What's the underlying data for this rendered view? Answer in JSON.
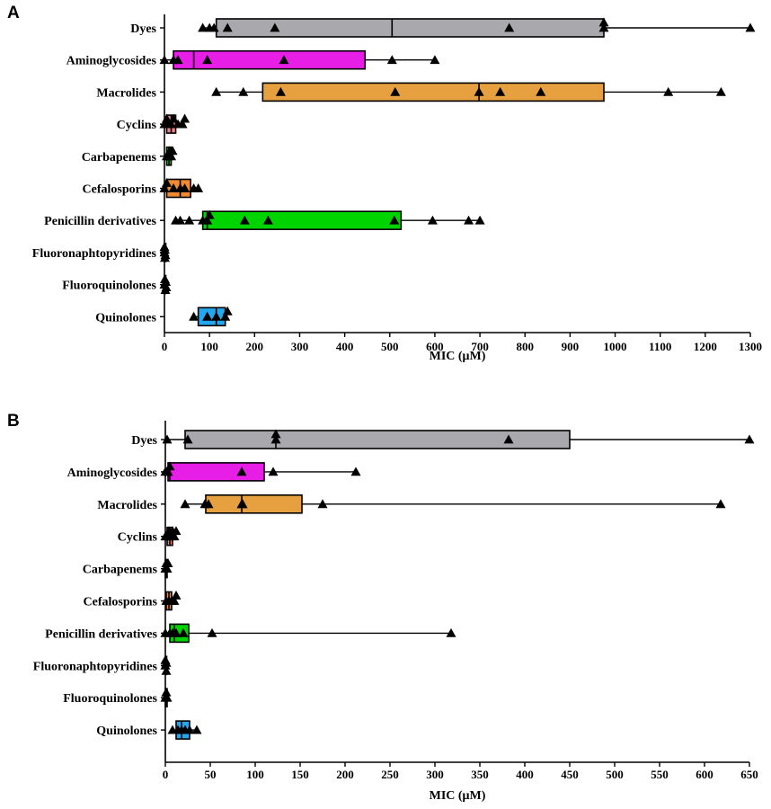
{
  "chart_data": [
    {
      "panel": "A",
      "type": "box",
      "xlabel": "MIC (μM)",
      "xlim": [
        0,
        1300
      ],
      "xticks": [
        0,
        100,
        200,
        300,
        400,
        500,
        600,
        700,
        800,
        900,
        1000,
        1100,
        1200,
        1300
      ],
      "categories": [
        {
          "name": "Dyes",
          "color": "#a9a9ad",
          "whisker": [
            85,
            1300
          ],
          "box": [
            115,
            975
          ],
          "median": 505,
          "points": [
            85,
            100,
            110,
            140,
            245,
            765,
            975,
            975,
            1300
          ]
        },
        {
          "name": "Aminoglycosides",
          "color": "#e61ee6",
          "whisker": [
            0,
            600
          ],
          "box": [
            20,
            445
          ],
          "median": 65,
          "points": [
            0,
            20,
            30,
            95,
            265,
            505,
            600
          ]
        },
        {
          "name": "Macrolides",
          "color": "#e6a040",
          "whisker": [
            115,
            1235
          ],
          "box": [
            218,
            975
          ],
          "median": 698,
          "points": [
            115,
            175,
            258,
            512,
            698,
            745,
            835,
            1118,
            1235
          ]
        },
        {
          "name": "Cyclins",
          "color": "#f08080",
          "whisker": [
            0,
            45
          ],
          "box": [
            5,
            25
          ],
          "median": 15,
          "points": [
            0,
            5,
            10,
            15,
            20,
            30,
            40,
            45
          ]
        },
        {
          "name": "Carbapenems",
          "color": "#22cc22",
          "whisker": [
            0,
            20
          ],
          "box": [
            5,
            15
          ],
          "median": 10,
          "points": [
            5,
            10,
            12,
            15,
            18
          ]
        },
        {
          "name": "Cefalosporins",
          "color": "#f08a32",
          "whisker": [
            0,
            75
          ],
          "box": [
            5,
            58
          ],
          "median": 35,
          "points": [
            0,
            5,
            20,
            35,
            45,
            65,
            75
          ]
        },
        {
          "name": "Penicillin derivatives",
          "color": "#00d400",
          "whisker": [
            25,
            700
          ],
          "box": [
            85,
            525
          ],
          "median": 95,
          "points": [
            25,
            35,
            55,
            85,
            95,
            100,
            178,
            230,
            510,
            595,
            675,
            700
          ]
        },
        {
          "name": "Fluoronaphtopyridines",
          "color": "#bbbbbb",
          "whisker": [
            0,
            2
          ],
          "box": [
            0,
            2
          ],
          "median": 1,
          "points": [
            0,
            0,
            1,
            1,
            2
          ]
        },
        {
          "name": "Fluoroquinolones",
          "color": "#bbbbbb",
          "whisker": [
            0,
            4
          ],
          "box": [
            0,
            3
          ],
          "median": 1,
          "points": [
            0,
            1,
            2,
            3,
            4
          ]
        },
        {
          "name": "Quinolones",
          "color": "#22a7f0",
          "whisker": [
            65,
            140
          ],
          "box": [
            75,
            135
          ],
          "median": 115,
          "points": [
            65,
            95,
            115,
            135,
            140
          ]
        }
      ]
    },
    {
      "panel": "B",
      "type": "box",
      "xlabel": "MIC (μM)",
      "xlim": [
        0,
        650
      ],
      "xticks": [
        0,
        50,
        100,
        150,
        200,
        250,
        300,
        350,
        400,
        450,
        500,
        550,
        600,
        650
      ],
      "categories": [
        {
          "name": "Dyes",
          "color": "#a9a9ad",
          "whisker": [
            2,
            650
          ],
          "box": [
            22,
            450
          ],
          "median": 123,
          "points": [
            2,
            25,
            123,
            123,
            382,
            650
          ]
        },
        {
          "name": "Aminoglycosides",
          "color": "#e61ee6",
          "whisker": [
            0,
            212
          ],
          "box": [
            3,
            110
          ],
          "median": 5,
          "points": [
            0,
            3,
            5,
            85,
            120,
            212
          ]
        },
        {
          "name": "Macrolides",
          "color": "#e6a040",
          "whisker": [
            22,
            618
          ],
          "box": [
            45,
            152
          ],
          "median": 85,
          "points": [
            22,
            44,
            48,
            85,
            86,
            175,
            618
          ]
        },
        {
          "name": "Cyclins",
          "color": "#f08080",
          "whisker": [
            0,
            12
          ],
          "box": [
            2,
            8
          ],
          "median": 5,
          "points": [
            0,
            2,
            4,
            6,
            8,
            10,
            12
          ]
        },
        {
          "name": "Carbapenems",
          "color": "#22cc22",
          "whisker": [
            0,
            3
          ],
          "box": [
            0,
            2
          ],
          "median": 1,
          "points": [
            0,
            1,
            2,
            3
          ]
        },
        {
          "name": "Cefalosporins",
          "color": "#f08a32",
          "whisker": [
            0,
            12
          ],
          "box": [
            1,
            7
          ],
          "median": 4,
          "points": [
            1,
            4,
            7,
            10,
            12
          ]
        },
        {
          "name": "Penicillin derivatives",
          "color": "#00d400",
          "whisker": [
            0,
            318
          ],
          "box": [
            5,
            26
          ],
          "median": 10,
          "points": [
            0,
            5,
            8,
            12,
            20,
            52,
            318
          ]
        },
        {
          "name": "Fluoronaphtopyridines",
          "color": "#bbbbbb",
          "whisker": [
            0,
            1
          ],
          "box": [
            0,
            1
          ],
          "median": 0,
          "points": [
            0,
            0,
            1,
            1
          ]
        },
        {
          "name": "Fluoroquinolones",
          "color": "#bbbbbb",
          "whisker": [
            0,
            2
          ],
          "box": [
            0,
            2
          ],
          "median": 1,
          "points": [
            0,
            1,
            2
          ]
        },
        {
          "name": "Quinolones",
          "color": "#22a7f0",
          "whisker": [
            8,
            35
          ],
          "box": [
            12,
            27
          ],
          "median": 18,
          "points": [
            8,
            14,
            18,
            22,
            27,
            35
          ]
        }
      ]
    }
  ]
}
